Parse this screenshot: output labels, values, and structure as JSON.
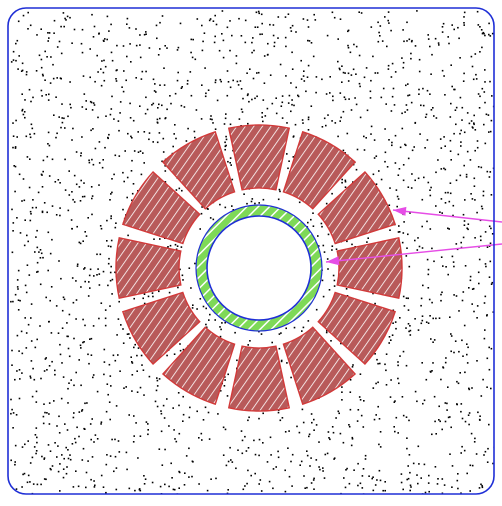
{
  "diagram": {
    "colors": {
      "background": "#ffffff",
      "frame": "#1f2fd6",
      "speckle": "#000000",
      "slot_stroke": "#d23a3a",
      "slot_fill": "#b85a5a",
      "slot_hatch": "#ffffff",
      "sleeve_fill": "#7ed957",
      "sleeve_hatch": "#ffffff",
      "sleeve_stroke": "#1f2fd6",
      "arrow": "#e64de6"
    },
    "slots": [
      {
        "id": "slot-1"
      },
      {
        "id": "slot-2"
      },
      {
        "id": "slot-3"
      },
      {
        "id": "slot-4"
      },
      {
        "id": "slot-5"
      },
      {
        "id": "slot-6"
      },
      {
        "id": "slot-7"
      },
      {
        "id": "slot-8"
      },
      {
        "id": "slot-9"
      },
      {
        "id": "slot-10"
      },
      {
        "id": "slot-11"
      },
      {
        "id": "slot-12"
      }
    ],
    "pointers": [
      {
        "id": "pointer-slot"
      },
      {
        "id": "pointer-sleeve"
      }
    ]
  }
}
